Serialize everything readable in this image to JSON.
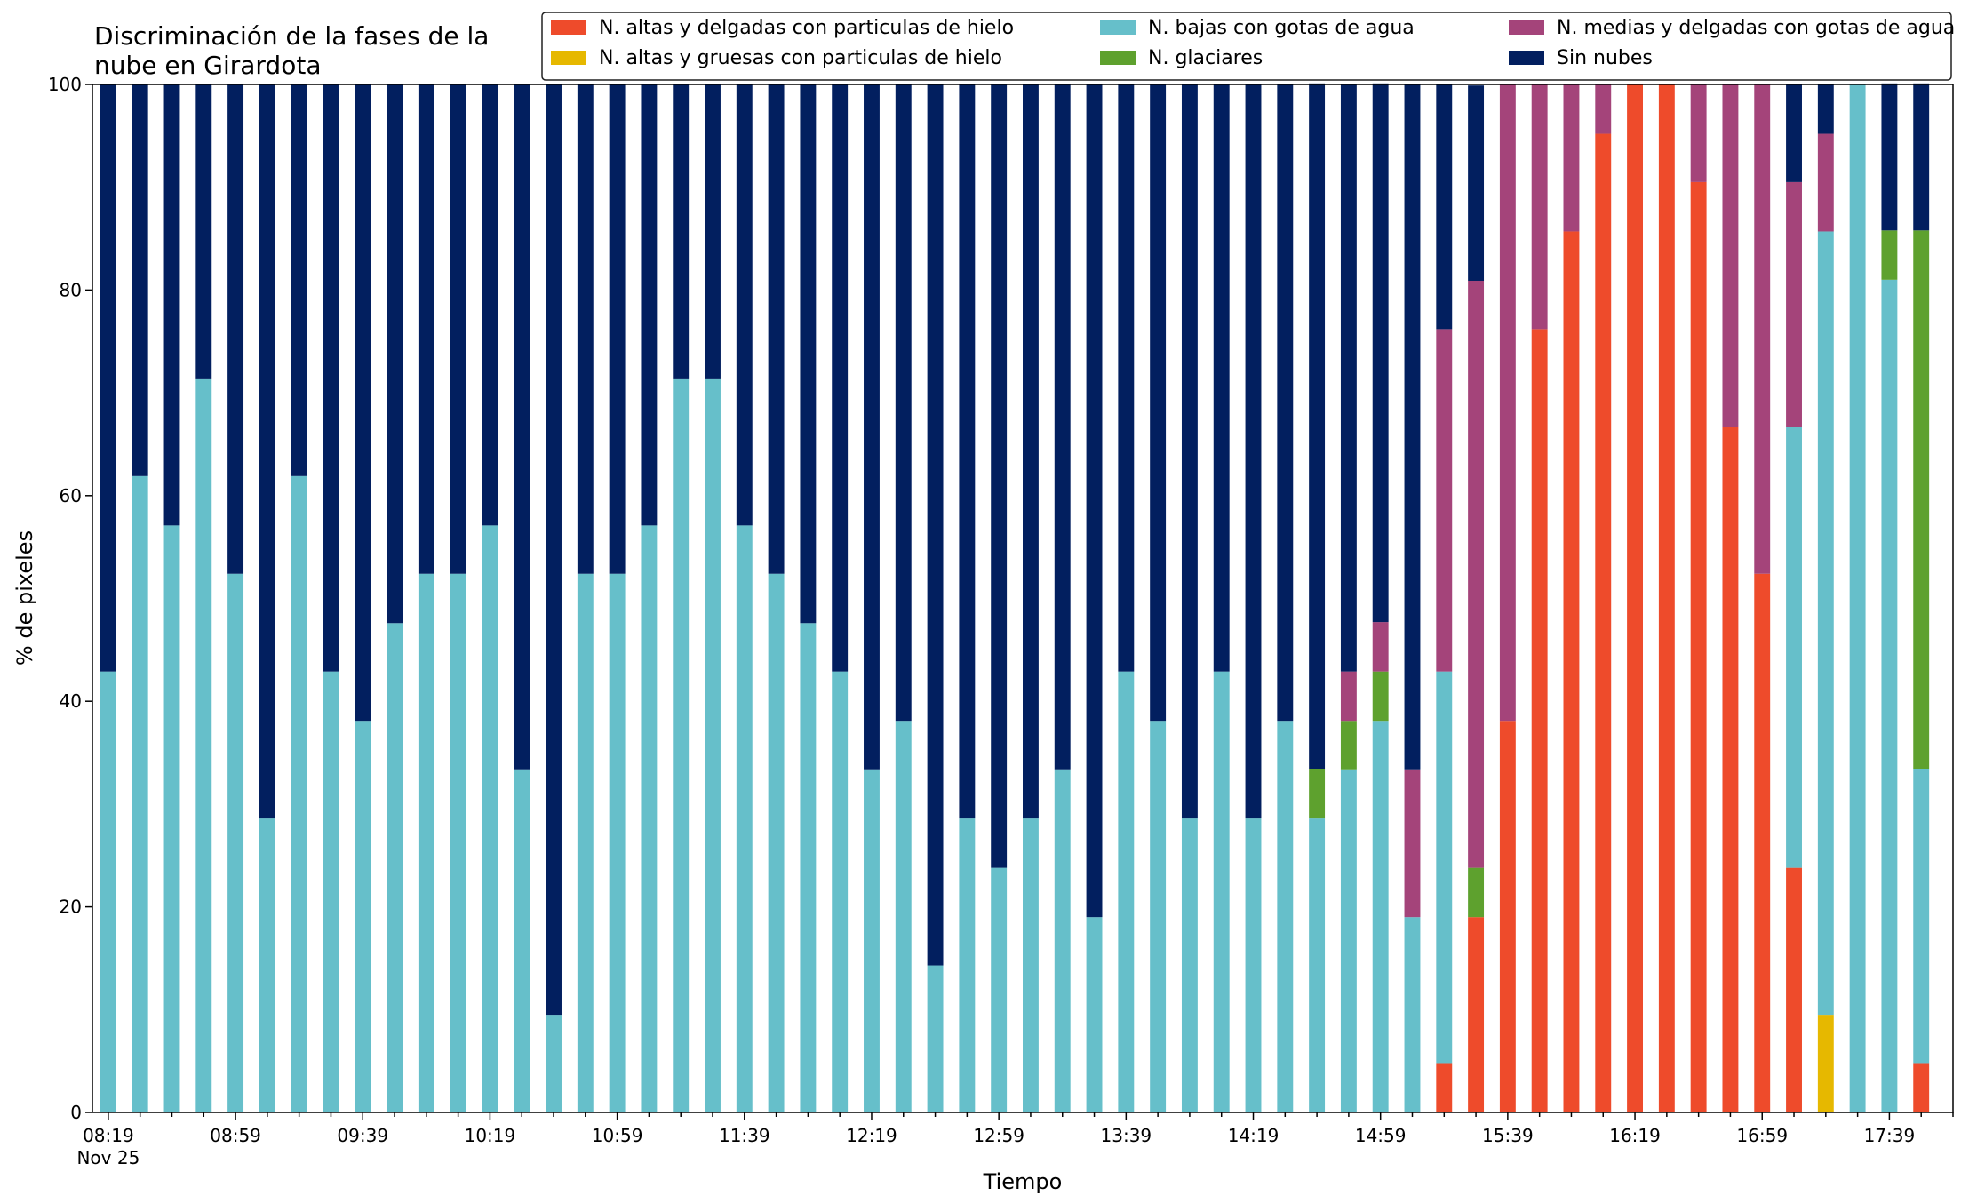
{
  "chart_data": {
    "type": "bar",
    "stacked": true,
    "title": "Discriminación de la fases de la nube en Girardota",
    "title_lines": [
      "Discriminación de la fases de la",
      "nube en Girardota"
    ],
    "xlabel": "Tiempo",
    "ylabel": "% de pixeles",
    "ylim": [
      0,
      100
    ],
    "yticks": [
      0,
      20,
      40,
      60,
      80,
      100
    ],
    "xtick_labels": [
      "08:19",
      "08:59",
      "09:39",
      "10:19",
      "10:59",
      "11:39",
      "12:19",
      "12:59",
      "13:39",
      "14:19",
      "14:59",
      "15:39",
      "16:19",
      "16:59",
      "17:39"
    ],
    "xtick_sublabel": "Nov 25",
    "x_start": "08:19",
    "x_step_minutes": 10,
    "grid": false,
    "legend_placement": "top-right",
    "categories": [
      "08:19",
      "08:29",
      "08:39",
      "08:49",
      "08:59",
      "09:09",
      "09:19",
      "09:29",
      "09:39",
      "09:49",
      "09:59",
      "10:09",
      "10:19",
      "10:29",
      "10:39",
      "10:49",
      "10:59",
      "11:09",
      "11:19",
      "11:29",
      "11:39",
      "11:49",
      "11:59",
      "12:09",
      "12:19",
      "12:29",
      "12:39",
      "12:49",
      "12:59",
      "13:09",
      "13:19",
      "13:29",
      "13:39",
      "13:49",
      "13:59",
      "14:09",
      "14:19",
      "14:29",
      "14:39",
      "14:49",
      "14:59",
      "15:09",
      "15:19",
      "15:29",
      "15:39",
      "15:49",
      "15:59",
      "16:09",
      "16:19",
      "16:29",
      "16:39",
      "16:49",
      "16:59",
      "17:09",
      "17:19",
      "17:29",
      "17:39",
      "17:49"
    ],
    "series": [
      {
        "name": "N. altas y delgadas con particulas de hielo",
        "color": "#ee4b2b",
        "values": [
          0,
          0,
          0,
          0,
          0,
          0,
          0,
          0,
          0,
          0,
          0,
          0,
          0,
          0,
          0,
          0,
          0,
          0,
          0,
          0,
          0,
          0,
          0,
          0,
          0,
          0,
          0,
          0,
          0,
          0,
          0,
          0,
          0,
          0,
          0,
          0,
          0,
          0,
          0,
          0,
          0,
          0,
          4.8,
          19.0,
          38.1,
          76.2,
          85.7,
          95.2,
          100,
          100,
          90.5,
          66.7,
          52.4,
          23.8,
          0,
          0,
          0,
          4.8
        ]
      },
      {
        "name": "N. altas y gruesas con particulas de hielo",
        "color": "#e6b800",
        "values": [
          0,
          0,
          0,
          0,
          0,
          0,
          0,
          0,
          0,
          0,
          0,
          0,
          0,
          0,
          0,
          0,
          0,
          0,
          0,
          0,
          0,
          0,
          0,
          0,
          0,
          0,
          0,
          0,
          0,
          0,
          0,
          0,
          0,
          0,
          0,
          0,
          0,
          0,
          0,
          0,
          0,
          0,
          0,
          0,
          0,
          0,
          0,
          0,
          0,
          0,
          0,
          0,
          0,
          0,
          9.5,
          0,
          0,
          0
        ]
      },
      {
        "name": "N. bajas con gotas de agua",
        "color": "#66bfca",
        "values": [
          42.9,
          61.9,
          57.1,
          71.4,
          52.4,
          28.6,
          61.9,
          42.9,
          38.1,
          47.6,
          52.4,
          52.4,
          57.1,
          33.3,
          9.5,
          52.4,
          52.4,
          57.1,
          71.4,
          71.4,
          57.1,
          52.4,
          47.6,
          42.9,
          33.3,
          38.1,
          14.3,
          28.6,
          23.8,
          28.6,
          33.3,
          19.0,
          42.9,
          38.1,
          28.6,
          42.9,
          28.6,
          38.1,
          28.6,
          33.3,
          38.1,
          19.0,
          38.1,
          0,
          0,
          0,
          0,
          0,
          0,
          0,
          0,
          0,
          0,
          42.9,
          76.2,
          100,
          81.0,
          28.6
        ]
      },
      {
        "name": "N. glaciares",
        "color": "#5ea12e",
        "values": [
          0,
          0,
          0,
          0,
          0,
          0,
          0,
          0,
          0,
          0,
          0,
          0,
          0,
          0,
          0,
          0,
          0,
          0,
          0,
          0,
          0,
          0,
          0,
          0,
          0,
          0,
          0,
          0,
          0,
          0,
          0,
          0,
          0,
          0,
          0,
          0,
          0,
          0,
          4.8,
          4.8,
          4.8,
          0,
          0,
          4.8,
          0,
          0,
          0,
          0,
          0,
          0,
          0,
          0,
          0,
          0,
          0,
          0,
          4.8,
          52.4
        ]
      },
      {
        "name": "N. medias y delgadas con gotas de agua",
        "color": "#a4447a",
        "values": [
          0,
          0,
          0,
          0,
          0,
          0,
          0,
          0,
          0,
          0,
          0,
          0,
          0,
          0,
          0,
          0,
          0,
          0,
          0,
          0,
          0,
          0,
          0,
          0,
          0,
          0,
          0,
          0,
          0,
          0,
          0,
          0,
          0,
          0,
          0,
          0,
          0,
          0,
          0,
          4.8,
          4.8,
          14.3,
          33.3,
          57.1,
          61.9,
          23.8,
          14.3,
          4.8,
          0,
          0,
          9.5,
          33.3,
          47.6,
          23.8,
          9.5,
          0,
          0,
          0
        ]
      },
      {
        "name": "Sin nubes",
        "color": "#021f5f",
        "values": [
          57.1,
          38.1,
          42.9,
          28.6,
          47.6,
          71.4,
          38.1,
          57.1,
          61.9,
          52.4,
          47.6,
          47.6,
          42.9,
          66.7,
          90.5,
          47.6,
          47.6,
          42.9,
          28.6,
          28.6,
          42.9,
          47.6,
          52.4,
          57.1,
          66.7,
          61.9,
          85.7,
          71.4,
          76.2,
          71.4,
          66.7,
          81.0,
          57.1,
          61.9,
          71.4,
          57.1,
          71.4,
          61.9,
          66.7,
          57.1,
          52.4,
          66.7,
          23.8,
          19.0,
          0,
          0,
          0,
          0,
          0,
          0,
          0,
          0,
          0,
          9.5,
          4.8,
          0,
          14.3,
          14.3
        ]
      }
    ]
  }
}
